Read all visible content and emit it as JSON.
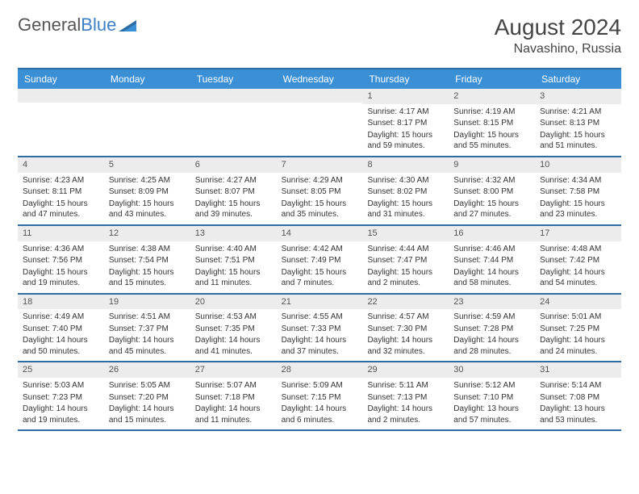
{
  "logo": {
    "text1": "General",
    "text2": "Blue"
  },
  "title": "August 2024",
  "location": "Navashino, Russia",
  "colors": {
    "header_bg": "#3b8fd4",
    "header_text": "#ffffff",
    "border": "#2e6da4",
    "daynum_bg": "#ececec",
    "logo_gray": "#555555",
    "logo_blue": "#3b7fc4"
  },
  "day_headers": [
    "Sunday",
    "Monday",
    "Tuesday",
    "Wednesday",
    "Thursday",
    "Friday",
    "Saturday"
  ],
  "weeks": [
    [
      {},
      {},
      {},
      {},
      {
        "day": "1",
        "sunrise": "Sunrise: 4:17 AM",
        "sunset": "Sunset: 8:17 PM",
        "daylight": "Daylight: 15 hours and 59 minutes."
      },
      {
        "day": "2",
        "sunrise": "Sunrise: 4:19 AM",
        "sunset": "Sunset: 8:15 PM",
        "daylight": "Daylight: 15 hours and 55 minutes."
      },
      {
        "day": "3",
        "sunrise": "Sunrise: 4:21 AM",
        "sunset": "Sunset: 8:13 PM",
        "daylight": "Daylight: 15 hours and 51 minutes."
      }
    ],
    [
      {
        "day": "4",
        "sunrise": "Sunrise: 4:23 AM",
        "sunset": "Sunset: 8:11 PM",
        "daylight": "Daylight: 15 hours and 47 minutes."
      },
      {
        "day": "5",
        "sunrise": "Sunrise: 4:25 AM",
        "sunset": "Sunset: 8:09 PM",
        "daylight": "Daylight: 15 hours and 43 minutes."
      },
      {
        "day": "6",
        "sunrise": "Sunrise: 4:27 AM",
        "sunset": "Sunset: 8:07 PM",
        "daylight": "Daylight: 15 hours and 39 minutes."
      },
      {
        "day": "7",
        "sunrise": "Sunrise: 4:29 AM",
        "sunset": "Sunset: 8:05 PM",
        "daylight": "Daylight: 15 hours and 35 minutes."
      },
      {
        "day": "8",
        "sunrise": "Sunrise: 4:30 AM",
        "sunset": "Sunset: 8:02 PM",
        "daylight": "Daylight: 15 hours and 31 minutes."
      },
      {
        "day": "9",
        "sunrise": "Sunrise: 4:32 AM",
        "sunset": "Sunset: 8:00 PM",
        "daylight": "Daylight: 15 hours and 27 minutes."
      },
      {
        "day": "10",
        "sunrise": "Sunrise: 4:34 AM",
        "sunset": "Sunset: 7:58 PM",
        "daylight": "Daylight: 15 hours and 23 minutes."
      }
    ],
    [
      {
        "day": "11",
        "sunrise": "Sunrise: 4:36 AM",
        "sunset": "Sunset: 7:56 PM",
        "daylight": "Daylight: 15 hours and 19 minutes."
      },
      {
        "day": "12",
        "sunrise": "Sunrise: 4:38 AM",
        "sunset": "Sunset: 7:54 PM",
        "daylight": "Daylight: 15 hours and 15 minutes."
      },
      {
        "day": "13",
        "sunrise": "Sunrise: 4:40 AM",
        "sunset": "Sunset: 7:51 PM",
        "daylight": "Daylight: 15 hours and 11 minutes."
      },
      {
        "day": "14",
        "sunrise": "Sunrise: 4:42 AM",
        "sunset": "Sunset: 7:49 PM",
        "daylight": "Daylight: 15 hours and 7 minutes."
      },
      {
        "day": "15",
        "sunrise": "Sunrise: 4:44 AM",
        "sunset": "Sunset: 7:47 PM",
        "daylight": "Daylight: 15 hours and 2 minutes."
      },
      {
        "day": "16",
        "sunrise": "Sunrise: 4:46 AM",
        "sunset": "Sunset: 7:44 PM",
        "daylight": "Daylight: 14 hours and 58 minutes."
      },
      {
        "day": "17",
        "sunrise": "Sunrise: 4:48 AM",
        "sunset": "Sunset: 7:42 PM",
        "daylight": "Daylight: 14 hours and 54 minutes."
      }
    ],
    [
      {
        "day": "18",
        "sunrise": "Sunrise: 4:49 AM",
        "sunset": "Sunset: 7:40 PM",
        "daylight": "Daylight: 14 hours and 50 minutes."
      },
      {
        "day": "19",
        "sunrise": "Sunrise: 4:51 AM",
        "sunset": "Sunset: 7:37 PM",
        "daylight": "Daylight: 14 hours and 45 minutes."
      },
      {
        "day": "20",
        "sunrise": "Sunrise: 4:53 AM",
        "sunset": "Sunset: 7:35 PM",
        "daylight": "Daylight: 14 hours and 41 minutes."
      },
      {
        "day": "21",
        "sunrise": "Sunrise: 4:55 AM",
        "sunset": "Sunset: 7:33 PM",
        "daylight": "Daylight: 14 hours and 37 minutes."
      },
      {
        "day": "22",
        "sunrise": "Sunrise: 4:57 AM",
        "sunset": "Sunset: 7:30 PM",
        "daylight": "Daylight: 14 hours and 32 minutes."
      },
      {
        "day": "23",
        "sunrise": "Sunrise: 4:59 AM",
        "sunset": "Sunset: 7:28 PM",
        "daylight": "Daylight: 14 hours and 28 minutes."
      },
      {
        "day": "24",
        "sunrise": "Sunrise: 5:01 AM",
        "sunset": "Sunset: 7:25 PM",
        "daylight": "Daylight: 14 hours and 24 minutes."
      }
    ],
    [
      {
        "day": "25",
        "sunrise": "Sunrise: 5:03 AM",
        "sunset": "Sunset: 7:23 PM",
        "daylight": "Daylight: 14 hours and 19 minutes."
      },
      {
        "day": "26",
        "sunrise": "Sunrise: 5:05 AM",
        "sunset": "Sunset: 7:20 PM",
        "daylight": "Daylight: 14 hours and 15 minutes."
      },
      {
        "day": "27",
        "sunrise": "Sunrise: 5:07 AM",
        "sunset": "Sunset: 7:18 PM",
        "daylight": "Daylight: 14 hours and 11 minutes."
      },
      {
        "day": "28",
        "sunrise": "Sunrise: 5:09 AM",
        "sunset": "Sunset: 7:15 PM",
        "daylight": "Daylight: 14 hours and 6 minutes."
      },
      {
        "day": "29",
        "sunrise": "Sunrise: 5:11 AM",
        "sunset": "Sunset: 7:13 PM",
        "daylight": "Daylight: 14 hours and 2 minutes."
      },
      {
        "day": "30",
        "sunrise": "Sunrise: 5:12 AM",
        "sunset": "Sunset: 7:10 PM",
        "daylight": "Daylight: 13 hours and 57 minutes."
      },
      {
        "day": "31",
        "sunrise": "Sunrise: 5:14 AM",
        "sunset": "Sunset: 7:08 PM",
        "daylight": "Daylight: 13 hours and 53 minutes."
      }
    ]
  ]
}
